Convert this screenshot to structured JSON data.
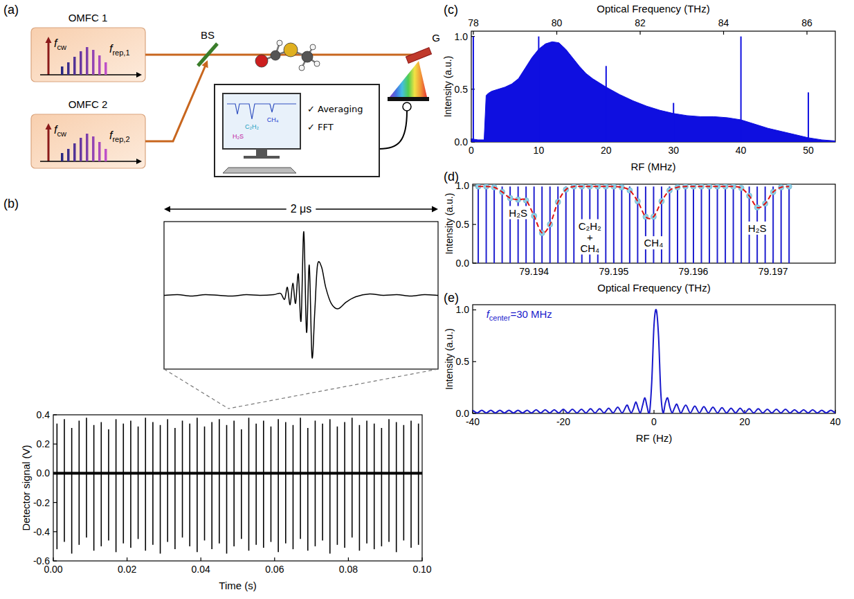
{
  "schematic": {
    "panel_label": "(a)",
    "sources": [
      {
        "name": "OMFC 1",
        "cw_label": {
          "text": "f",
          "subscript": "cw"
        },
        "rep_label": {
          "text": "f",
          "subscript": "rep,1"
        }
      },
      {
        "name": "OMFC 2",
        "cw_label": {
          "text": "f",
          "subscript": "cw"
        },
        "rep_label": {
          "text": "f",
          "subscript": "rep,2"
        }
      }
    ],
    "beam_splitter": "BS",
    "grating": "G",
    "computer": {
      "checklist": [
        "✓ Averaging",
        "✓ FFT"
      ],
      "screen_labels": [
        "C₂H₂",
        "CH₄",
        "H₂S"
      ]
    }
  },
  "chart_data": [
    {
      "panel_label": "(b)",
      "type": "spike",
      "x_label": "Time (s)",
      "y_label": "Detector signal (V)",
      "xlim": [
        0,
        0.1
      ],
      "xticks": [
        {
          "value": 0,
          "label": "0.00"
        },
        0.02,
        0.04,
        0.06,
        0.08,
        {
          "value": 0.1,
          "label": "0.10"
        }
      ],
      "ylim": [
        -0.6,
        0.4
      ],
      "yticks": [
        -0.6,
        -0.4,
        -0.2,
        {
          "value": 0,
          "label": "0.0"
        },
        0.2,
        0.4
      ],
      "grid": false,
      "x": [
        0.001,
        0.003,
        0.005,
        0.007,
        0.009,
        0.011,
        0.013,
        0.015,
        0.017,
        0.019,
        0.021,
        0.023,
        0.025,
        0.027,
        0.029,
        0.031,
        0.033,
        0.035,
        0.037,
        0.039,
        0.041,
        0.043,
        0.045,
        0.047,
        0.049,
        0.051,
        0.053,
        0.055,
        0.057,
        0.059,
        0.061,
        0.063,
        0.065,
        0.067,
        0.069,
        0.071,
        0.073,
        0.075,
        0.077,
        0.079,
        0.081,
        0.083,
        0.085,
        0.087,
        0.089,
        0.091,
        0.093,
        0.095,
        0.097,
        0.099
      ],
      "series": [
        {
          "color": "#000000",
          "values": [
            0.34,
            0.37,
            0.31,
            0.36,
            0.38,
            0.33,
            0.35,
            0.3,
            0.37,
            0.34,
            0.36,
            0.32,
            0.38,
            0.35,
            0.33,
            0.37,
            0.31,
            0.36,
            0.34,
            0.38,
            0.32,
            0.35,
            0.37,
            0.33,
            0.36,
            0.3,
            0.38,
            0.34,
            0.36,
            0.32,
            0.37,
            0.35,
            0.33,
            0.38,
            0.31,
            0.36,
            0.34,
            0.37,
            0.32,
            0.35,
            0.38,
            0.33,
            0.36,
            0.34,
            0.31,
            0.37,
            0.35,
            0.33,
            0.36,
            0.34
          ]
        },
        {
          "color": "#000000",
          "values": [
            -0.52,
            -0.47,
            -0.55,
            -0.49,
            -0.44,
            -0.53,
            -0.5,
            -0.46,
            -0.54,
            -0.48,
            -0.51,
            -0.45,
            -0.53,
            -0.49,
            -0.55,
            -0.47,
            -0.52,
            -0.44,
            -0.5,
            -0.54,
            -0.46,
            -0.52,
            -0.48,
            -0.55,
            -0.5,
            -0.45,
            -0.53,
            -0.49,
            -0.51,
            -0.47,
            -0.54,
            -0.48,
            -0.52,
            -0.45,
            -0.53,
            -0.5,
            -0.46,
            -0.55,
            -0.49,
            -0.51,
            -0.44,
            -0.53,
            -0.48,
            -0.52,
            -0.5,
            -0.47,
            -0.54,
            -0.46,
            -0.51,
            -0.49
          ]
        }
      ]
    },
    {
      "type": "line",
      "title": "2 μs",
      "xlim": [
        0,
        2
      ],
      "ylim": [
        -1.1,
        1.1
      ],
      "tick_labels": false,
      "grid": false,
      "x": [
        0,
        0.1,
        0.2,
        0.3,
        0.4,
        0.5,
        0.6,
        0.7,
        0.8,
        0.85,
        0.88,
        0.9,
        0.92,
        0.94,
        0.96,
        0.98,
        1.0,
        1.02,
        1.04,
        1.06,
        1.08,
        1.1,
        1.12,
        1.15,
        1.18,
        1.22,
        1.27,
        1.33,
        1.4,
        1.5,
        1.6,
        1.7,
        1.8,
        1.9,
        2.0
      ],
      "series": [
        {
          "color": "#000000",
          "values": [
            0,
            0.01,
            -0.01,
            0.01,
            0,
            -0.01,
            0.01,
            0,
            0.01,
            0.03,
            -0.06,
            0.12,
            -0.14,
            0.18,
            -0.12,
            0.32,
            -0.38,
            0.95,
            -0.55,
            0.45,
            -0.92,
            -0.25,
            0.45,
            0.42,
            0.12,
            -0.12,
            -0.2,
            -0.1,
            -0.02,
            0.02,
            0,
            0.01,
            -0.01,
            0.01,
            0
          ]
        }
      ]
    },
    {
      "panel_label": "(c)",
      "type": "area",
      "x_label": "RF (MHz)",
      "y_label": "Intensity (a.u.)",
      "x2_label": "Optical Frequency (THz)",
      "xlim": [
        0,
        54
      ],
      "xticks": [
        0,
        10,
        20,
        30,
        40,
        50
      ],
      "x2lim": [
        77.95,
        86.68
      ],
      "x2ticks": [
        78,
        80,
        82,
        84,
        86
      ],
      "ylim": [
        0,
        1.05
      ],
      "yticks": [
        {
          "value": 0,
          "label": "0.0"
        },
        0.5,
        {
          "value": 1,
          "label": "1.0"
        }
      ],
      "grid": false,
      "series": [
        {
          "type": "area",
          "color": "#0f0fe0",
          "x": [
            0,
            1,
            1.9,
            2.2,
            2.5,
            3,
            4,
            5,
            6,
            7,
            8,
            9,
            10,
            11,
            12,
            13,
            14,
            15,
            16,
            17,
            18,
            20,
            22,
            24,
            26,
            28,
            30,
            32,
            34,
            36,
            38,
            40,
            42,
            44,
            46,
            48,
            50,
            52,
            54
          ],
          "values": [
            0.03,
            0.02,
            0.02,
            0.44,
            0.46,
            0.48,
            0.5,
            0.52,
            0.55,
            0.6,
            0.7,
            0.8,
            0.88,
            0.93,
            0.95,
            0.94,
            0.88,
            0.8,
            0.72,
            0.65,
            0.6,
            0.52,
            0.45,
            0.39,
            0.34,
            0.3,
            0.27,
            0.25,
            0.24,
            0.24,
            0.23,
            0.21,
            0.17,
            0.13,
            0.1,
            0.07,
            0.04,
            0.02,
            0.01
          ]
        },
        {
          "type": "stem",
          "color": "#0f0fe0",
          "x": [
            0.3,
            10,
            20,
            30,
            40,
            50
          ],
          "values": [
            1,
            1,
            0.72,
            0.37,
            1,
            0.47
          ]
        }
      ]
    },
    {
      "panel_label": "(d)",
      "type": "stem",
      "x_label": "Optical Frequency (THz)",
      "y_label": "Intensity (a.u.)",
      "xlim": [
        79.19323,
        79.19778
      ],
      "xticks": [
        79.194,
        79.195,
        79.196,
        79.197
      ],
      "ylim": [
        0,
        1.02
      ],
      "yticks": [
        {
          "value": 0,
          "label": "0.0"
        },
        0.5,
        {
          "value": 1,
          "label": "1.0"
        }
      ],
      "grid": false,
      "x": [
        79.1933,
        79.1934,
        79.1935,
        79.1936,
        79.1937,
        79.1938,
        79.1939,
        79.194,
        79.1941,
        79.1942,
        79.1943,
        79.1944,
        79.1945,
        79.1946,
        79.1947,
        79.1948,
        79.1949,
        79.195,
        79.1951,
        79.1952,
        79.1953,
        79.1954,
        79.1955,
        79.1956,
        79.1957,
        79.1958,
        79.1959,
        79.196,
        79.1961,
        79.1962,
        79.1963,
        79.1964,
        79.1965,
        79.1966,
        79.1967,
        79.1968,
        79.1969,
        79.197,
        79.1971,
        79.1972
      ],
      "series": [
        {
          "type": "stem",
          "color": "#1f1fcf",
          "values": [
            0.99,
            0.99,
            0.99,
            0.99,
            0.99,
            0.99,
            0.99,
            0.99,
            0.99,
            0.99,
            0.99,
            0.99,
            0.99,
            0.99,
            0.99,
            0.99,
            0.99,
            0.99,
            0.99,
            0.99,
            0.99,
            0.99,
            0.99,
            0.99,
            0.99,
            0.99,
            0.99,
            0.99,
            0.99,
            0.99,
            0.99,
            0.99,
            0.99,
            0.99,
            0.99,
            0.99,
            0.99,
            0.99,
            0.99,
            0.99
          ]
        },
        {
          "type": "scatter",
          "marker": "circle",
          "color": "#8fd0e6",
          "values": [
            0.99,
            0.99,
            0.98,
            0.92,
            0.84,
            0.82,
            0.81,
            0.61,
            0.39,
            0.5,
            0.79,
            0.95,
            0.99,
            0.99,
            0.99,
            0.99,
            0.99,
            0.99,
            0.98,
            0.94,
            0.8,
            0.6,
            0.6,
            0.8,
            0.94,
            0.98,
            0.99,
            0.99,
            0.99,
            0.99,
            0.99,
            0.99,
            0.99,
            0.97,
            0.87,
            0.72,
            0.77,
            0.92,
            0.98,
            0.99
          ]
        },
        {
          "type": "line",
          "line_style": "dashed",
          "color": "#e01010",
          "values": [
            0.99,
            0.99,
            0.98,
            0.92,
            0.84,
            0.82,
            0.81,
            0.61,
            0.39,
            0.5,
            0.79,
            0.95,
            0.99,
            0.99,
            0.99,
            0.99,
            0.99,
            0.99,
            0.98,
            0.94,
            0.8,
            0.6,
            0.6,
            0.8,
            0.94,
            0.98,
            0.99,
            0.99,
            0.99,
            0.99,
            0.99,
            0.99,
            0.99,
            0.97,
            0.87,
            0.72,
            0.77,
            0.92,
            0.98,
            0.99
          ]
        }
      ],
      "annotations": [
        {
          "lines": [
            "H₂S"
          ],
          "x": 79.1938,
          "y": 0.72
        },
        {
          "lines": [
            "C₂H₂",
            "+",
            "CH₄"
          ],
          "x": 79.1947,
          "y": 0.55
        },
        {
          "lines": [
            "CH₄"
          ],
          "x": 79.1955,
          "y": 0.33
        },
        {
          "lines": [
            "H₂S"
          ],
          "x": 79.1968,
          "y": 0.52
        }
      ]
    },
    {
      "panel_label": "(e)",
      "type": "line",
      "x_label": "RF (Hz)",
      "y_label": "Intensity (a.u.)",
      "xlim": [
        -40,
        40
      ],
      "xticks": [
        -40,
        -20,
        0,
        20,
        40
      ],
      "ylim": [
        0,
        1.05
      ],
      "yticks": [
        {
          "value": 0,
          "label": "0.0"
        },
        0.5,
        {
          "value": 1,
          "label": "1.0"
        }
      ],
      "grid": false,
      "x": [
        -40,
        -39,
        -38,
        -37,
        -36,
        -35,
        -34,
        -33,
        -32,
        -31,
        -30,
        -29,
        -28,
        -27,
        -26,
        -25,
        -24,
        -23,
        -22,
        -21,
        -20,
        -19,
        -18,
        -17,
        -16,
        -15,
        -14,
        -13,
        -12,
        -11,
        -10,
        -9,
        -8,
        -7,
        -6,
        -5.5,
        -5,
        -4.5,
        -4,
        -3.5,
        -3,
        -2.5,
        -2,
        -1.5,
        -1,
        -0.5,
        0,
        0.5,
        1,
        1.5,
        2,
        2.5,
        3,
        3.5,
        4,
        4.5,
        5,
        5.5,
        6,
        7,
        8,
        9,
        10,
        11,
        12,
        13,
        14,
        15,
        16,
        17,
        18,
        19,
        20,
        21,
        22,
        23,
        24,
        25,
        26,
        27,
        28,
        29,
        30,
        31,
        32,
        33,
        34,
        35,
        36,
        37,
        38,
        39,
        40
      ],
      "series": [
        {
          "color": "#1a1acc",
          "values": [
            0.03,
            0.005,
            0.03,
            0.005,
            0.03,
            0.005,
            0.03,
            0.005,
            0.03,
            0.005,
            0.03,
            0.005,
            0.03,
            0.005,
            0.035,
            0.005,
            0.035,
            0.005,
            0.035,
            0.005,
            0.04,
            0.005,
            0.04,
            0.005,
            0.04,
            0.005,
            0.045,
            0.005,
            0.045,
            0.005,
            0.05,
            0.005,
            0.06,
            0.005,
            0.08,
            0.04,
            0.005,
            0.05,
            0.11,
            0.05,
            0.005,
            0.08,
            0.15,
            0.06,
            0.005,
            0.3,
            0.85,
            1,
            0.75,
            0.2,
            0.005,
            0.1,
            0.15,
            0.06,
            0.005,
            0.05,
            0.09,
            0.04,
            0.005,
            0.08,
            0.005,
            0.07,
            0.005,
            0.065,
            0.005,
            0.06,
            0.005,
            0.055,
            0.005,
            0.05,
            0.005,
            0.05,
            0.005,
            0.045,
            0.005,
            0.045,
            0.005,
            0.04,
            0.005,
            0.04,
            0.005,
            0.04,
            0.005,
            0.035,
            0.005,
            0.035,
            0.005,
            0.035,
            0.005,
            0.03,
            0.005,
            0.03,
            0.005
          ]
        }
      ],
      "annotations": [
        {
          "text": "f",
          "subscript": "center",
          "rest": "=30 MHz",
          "x": -37,
          "y": 0.92,
          "color": "#1a1acc"
        }
      ]
    }
  ]
}
